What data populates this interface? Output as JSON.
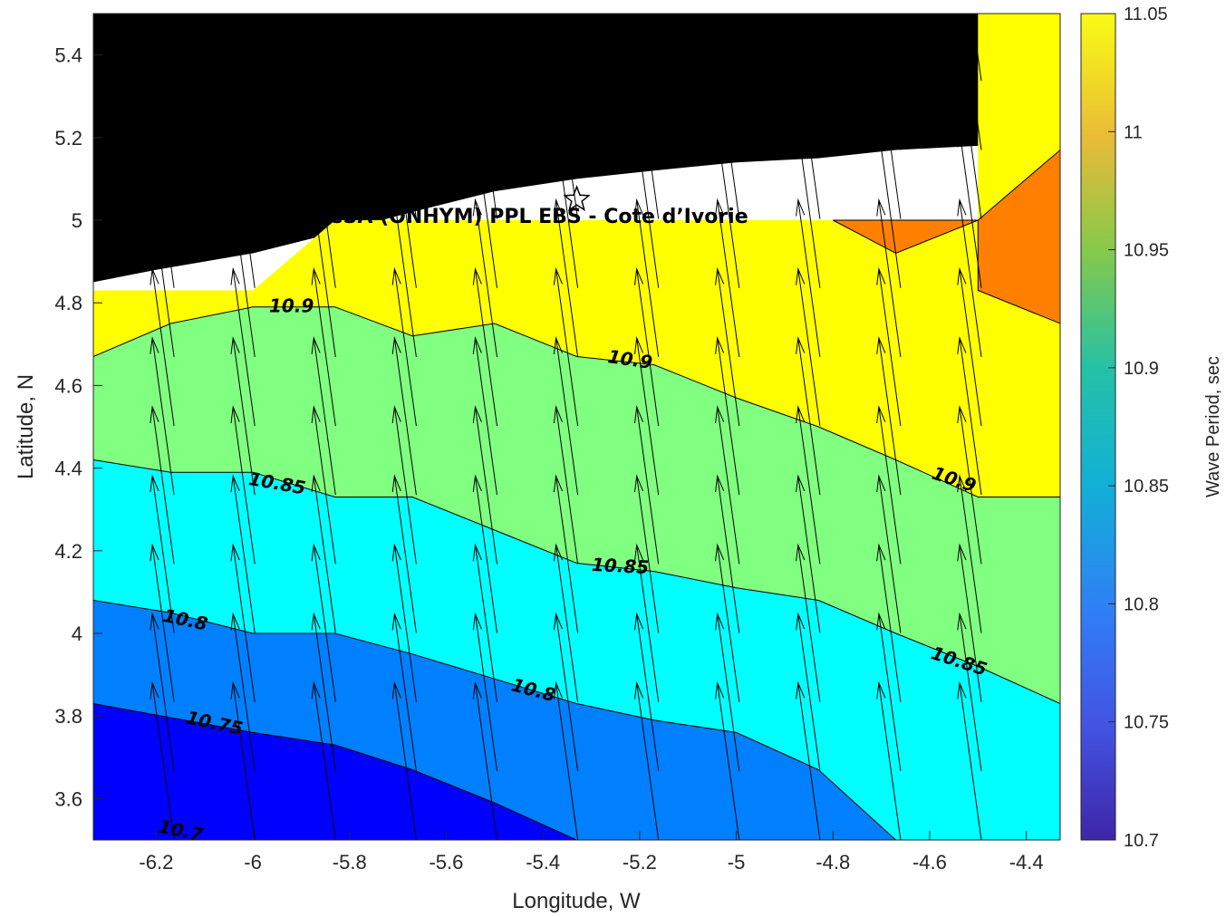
{
  "chart_data": {
    "type": "contour",
    "xlabel": "Longitude, W",
    "ylabel": "Latitude, N",
    "xlim": [
      -6.33,
      -4.33
    ],
    "ylim": [
      3.5,
      5.5
    ],
    "xticks": [
      -6.2,
      -6,
      -5.8,
      -5.6,
      -5.4,
      -5.2,
      -5,
      -4.8,
      -4.6,
      -4.4
    ],
    "xtick_labels": [
      "-6.2",
      "-6",
      "-5.8",
      "-5.6",
      "-5.4",
      "-5.2",
      "-5",
      "-4.8",
      "-4.6",
      "-4.4"
    ],
    "yticks": [
      3.6,
      3.8,
      4,
      4.2,
      4.4,
      4.6,
      4.8,
      5,
      5.2,
      5.4
    ],
    "ytick_labels": [
      "3.6",
      "3.8",
      "4",
      "4.2",
      "4.4",
      "4.6",
      "4.8",
      "5",
      "5.2",
      "5.4"
    ],
    "annotation": "CSA (ONHYM) PPL EBS  - Cote d’Ivorie",
    "site_marker": {
      "lon": -5.33,
      "lat": 5.05
    },
    "colorbar": {
      "label": "Wave Period, sec",
      "range": [
        10.7,
        11.05
      ],
      "ticks": [
        "10.7",
        "10.75",
        "10.8",
        "10.85",
        "10.9",
        "10.95",
        "11",
        "11.05"
      ]
    },
    "contour_labels": [
      {
        "text": "10.9",
        "lon": -5.92,
        "lat": 4.79,
        "rot": 0
      },
      {
        "text": "10.9",
        "lon": -5.22,
        "lat": 4.66,
        "rot": 8
      },
      {
        "text": "10.9",
        "lon": -4.55,
        "lat": 4.37,
        "rot": 18
      },
      {
        "text": "10.85",
        "lon": -5.95,
        "lat": 4.36,
        "rot": 10
      },
      {
        "text": "10.85",
        "lon": -5.24,
        "lat": 4.16,
        "rot": 3
      },
      {
        "text": "10.85",
        "lon": -4.54,
        "lat": 3.93,
        "rot": 18
      },
      {
        "text": "10.8",
        "lon": -6.14,
        "lat": 4.03,
        "rot": 12
      },
      {
        "text": "10.8",
        "lon": -5.42,
        "lat": 3.86,
        "rot": 15
      },
      {
        "text": "10.75",
        "lon": -6.08,
        "lat": 3.78,
        "rot": 12
      },
      {
        "text": "10.7",
        "lon": -6.15,
        "lat": 3.52,
        "rot": 12
      }
    ],
    "bands": [
      {
        "level": "10.7",
        "color": "#0000ff",
        "boundary": [
          [
            -6.33,
            3.83
          ],
          [
            -6.0,
            3.76
          ],
          [
            -5.83,
            3.73
          ],
          [
            -5.67,
            3.67
          ],
          [
            -5.5,
            3.59
          ],
          [
            -5.33,
            3.5
          ]
        ]
      },
      {
        "level": "10.75",
        "color": "#0080ff",
        "boundary": [
          [
            -6.33,
            4.08
          ],
          [
            -6.17,
            4.05
          ],
          [
            -6.0,
            4.0
          ],
          [
            -5.83,
            4.0
          ],
          [
            -5.67,
            3.95
          ],
          [
            -5.5,
            3.89
          ],
          [
            -5.33,
            3.83
          ],
          [
            -5.17,
            3.79
          ],
          [
            -5.0,
            3.76
          ],
          [
            -4.83,
            3.67
          ],
          [
            -4.67,
            3.5
          ]
        ]
      },
      {
        "level": "10.8",
        "color": "#00ffff",
        "boundary": [
          [
            -6.33,
            4.42
          ],
          [
            -6.17,
            4.39
          ],
          [
            -6.0,
            4.39
          ],
          [
            -5.83,
            4.33
          ],
          [
            -5.67,
            4.33
          ],
          [
            -5.5,
            4.25
          ],
          [
            -5.33,
            4.17
          ],
          [
            -5.17,
            4.15
          ],
          [
            -5.0,
            4.11
          ],
          [
            -4.83,
            4.08
          ],
          [
            -4.67,
            4.0
          ],
          [
            -4.5,
            3.92
          ],
          [
            -4.33,
            3.83
          ]
        ]
      },
      {
        "level": "10.85",
        "color": "#80ff80",
        "boundary": [
          [
            -6.33,
            4.67
          ],
          [
            -6.17,
            4.75
          ],
          [
            -6.0,
            4.79
          ],
          [
            -5.83,
            4.79
          ],
          [
            -5.67,
            4.72
          ],
          [
            -5.5,
            4.75
          ],
          [
            -5.33,
            4.67
          ],
          [
            -5.17,
            4.65
          ],
          [
            -5.0,
            4.57
          ],
          [
            -4.83,
            4.5
          ],
          [
            -4.67,
            4.42
          ],
          [
            -4.5,
            4.33
          ],
          [
            -4.33,
            4.33
          ]
        ]
      },
      {
        "level": "10.9",
        "color": "#ffff00",
        "boundary": [
          [
            -6.33,
            4.83
          ],
          [
            -6.0,
            4.83
          ],
          [
            -5.83,
            5.0
          ],
          [
            -4.5,
            5.0
          ],
          [
            -4.5,
            5.5
          ],
          [
            -4.33,
            5.5
          ]
        ]
      },
      {
        "level": "10.95",
        "color": "#ff8000",
        "polygons": [
          [
            [
              -4.8,
              5.0
            ],
            [
              -4.5,
              5.0
            ],
            [
              -4.67,
              4.92
            ]
          ],
          [
            [
              -4.5,
              5.0
            ],
            [
              -4.33,
              5.17
            ],
            [
              -4.33,
              4.75
            ],
            [
              -4.5,
              4.83
            ]
          ]
        ]
      }
    ],
    "coastline": [
      [
        -6.33,
        4.85
      ],
      [
        -6.2,
        4.88
      ],
      [
        -6.0,
        4.92
      ],
      [
        -5.83,
        4.97
      ],
      [
        -5.67,
        5.02
      ],
      [
        -5.5,
        5.07
      ],
      [
        -5.33,
        5.1
      ],
      [
        -5.17,
        5.12
      ],
      [
        -5.0,
        5.14
      ],
      [
        -4.83,
        5.15
      ],
      [
        -4.67,
        5.17
      ],
      [
        -4.5,
        5.18
      ],
      [
        -4.33,
        5.21
      ]
    ],
    "land_color": "#000000",
    "arrows": {
      "dlon": -0.045,
      "dlat": 0.38,
      "lon_start": -6.33,
      "lon_step": 0.167,
      "lat_start": 3.5,
      "lat_step": 0.167
    }
  }
}
